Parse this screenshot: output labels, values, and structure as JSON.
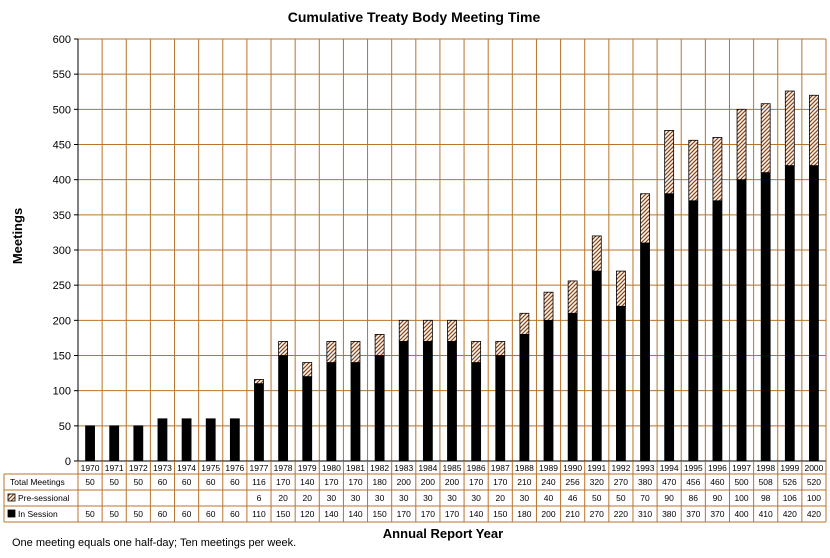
{
  "chart_data": {
    "type": "bar",
    "stacked": true,
    "title": "Cumulative Treaty Body Meeting Time",
    "xlabel": "Annual Report Year",
    "ylabel": "Meetings",
    "ylim": [
      0,
      600
    ],
    "yticks": [
      0,
      50,
      100,
      150,
      200,
      250,
      300,
      350,
      400,
      450,
      500,
      550,
      600
    ],
    "grid": true,
    "categories": [
      "1970",
      "1971",
      "1972",
      "1973",
      "1974",
      "1975",
      "1976",
      "1977",
      "1978",
      "1979",
      "1980",
      "1981",
      "1982",
      "1983",
      "1984",
      "1985",
      "1986",
      "1987",
      "1988",
      "1989",
      "1990",
      "1991",
      "1992",
      "1993",
      "1994",
      "1995",
      "1996",
      "1997",
      "1998",
      "1999",
      "2000"
    ],
    "series": [
      {
        "name": "In Session",
        "pattern": "solid",
        "color": "#000000",
        "values": [
          50,
          50,
          50,
          60,
          60,
          60,
          60,
          110,
          150,
          120,
          140,
          140,
          150,
          170,
          170,
          170,
          140,
          150,
          180,
          200,
          210,
          270,
          220,
          310,
          380,
          370,
          370,
          400,
          410,
          420,
          420
        ]
      },
      {
        "name": "Pre-sessional",
        "pattern": "hatched",
        "color": "#8b4513",
        "values": [
          null,
          null,
          null,
          null,
          null,
          null,
          null,
          6,
          20,
          20,
          30,
          30,
          30,
          30,
          30,
          30,
          30,
          20,
          30,
          40,
          46,
          50,
          50,
          70,
          90,
          86,
          90,
          100,
          98,
          106,
          100
        ]
      }
    ],
    "table": {
      "rows": [
        {
          "label": "Total Meetings",
          "values": [
            "50",
            "50",
            "50",
            "60",
            "60",
            "60",
            "60",
            "116",
            "170",
            "140",
            "170",
            "170",
            "180",
            "200",
            "200",
            "200",
            "170",
            "170",
            "210",
            "240",
            "256",
            "320",
            "270",
            "380",
            "470",
            "456",
            "460",
            "500",
            "508",
            "526",
            "520"
          ]
        },
        {
          "label": "Pre-sessional",
          "values": [
            "",
            "",
            "",
            "",
            "",
            "",
            "",
            "6",
            "20",
            "20",
            "30",
            "30",
            "30",
            "30",
            "30",
            "30",
            "30",
            "20",
            "30",
            "40",
            "46",
            "50",
            "50",
            "70",
            "90",
            "86",
            "90",
            "100",
            "98",
            "106",
            "100"
          ]
        },
        {
          "label": "In Session",
          "values": [
            "50",
            "50",
            "50",
            "60",
            "60",
            "60",
            "60",
            "110",
            "150",
            "120",
            "140",
            "140",
            "150",
            "170",
            "170",
            "170",
            "140",
            "150",
            "180",
            "200",
            "210",
            "270",
            "220",
            "310",
            "380",
            "370",
            "370",
            "400",
            "410",
            "420",
            "420"
          ]
        }
      ]
    },
    "footnote": "One meeting equals one half-day; Ten meetings per week."
  }
}
